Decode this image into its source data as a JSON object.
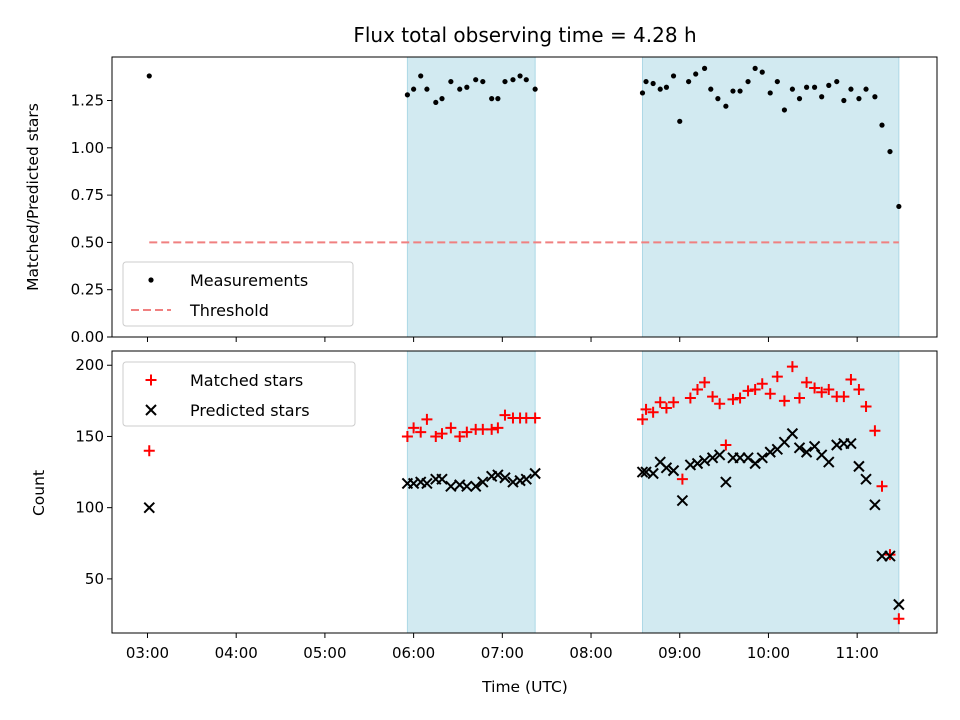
{
  "chart_data": [
    {
      "type": "scatter",
      "title": "Flux total observing time = 4.28 h",
      "xlabel": "",
      "ylabel": "Matched/Predicted stars",
      "xlim": [
        2.6,
        11.9
      ],
      "ylim": [
        0.0,
        1.48
      ],
      "yticks": [
        0.0,
        0.25,
        0.5,
        0.75,
        1.0,
        1.25
      ],
      "ytick_labels": [
        "0.00",
        "0.25",
        "0.50",
        "0.75",
        "1.00",
        "1.25"
      ],
      "grid": false,
      "legend": "lower-left",
      "shaded_intervals": [
        [
          5.93,
          7.37
        ],
        [
          8.58,
          11.47
        ]
      ],
      "shade_color": "#add8e6",
      "series": [
        {
          "name": "Measurements",
          "marker": "dot",
          "color": "#000000",
          "x": [
            3.02,
            5.93,
            6.0,
            6.08,
            6.15,
            6.25,
            6.32,
            6.42,
            6.52,
            6.6,
            6.7,
            6.78,
            6.88,
            6.95,
            7.03,
            7.12,
            7.2,
            7.27,
            7.37,
            8.58,
            8.62,
            8.7,
            8.78,
            8.85,
            8.93,
            9.0,
            9.1,
            9.18,
            9.28,
            9.35,
            9.43,
            9.52,
            9.6,
            9.68,
            9.77,
            9.85,
            9.93,
            10.02,
            10.1,
            10.18,
            10.27,
            10.35,
            10.43,
            10.52,
            10.6,
            10.68,
            10.77,
            10.85,
            10.93,
            11.02,
            11.1,
            11.2,
            11.28,
            11.37,
            11.47
          ],
          "y": [
            1.38,
            1.28,
            1.31,
            1.38,
            1.31,
            1.24,
            1.26,
            1.35,
            1.31,
            1.32,
            1.36,
            1.35,
            1.26,
            1.26,
            1.35,
            1.36,
            1.38,
            1.36,
            1.31,
            1.29,
            1.35,
            1.34,
            1.31,
            1.32,
            1.38,
            1.14,
            1.35,
            1.39,
            1.42,
            1.31,
            1.26,
            1.22,
            1.3,
            1.3,
            1.35,
            1.42,
            1.4,
            1.29,
            1.35,
            1.2,
            1.31,
            1.26,
            1.32,
            1.32,
            1.27,
            1.33,
            1.35,
            1.25,
            1.31,
            1.26,
            1.31,
            1.27,
            1.12,
            0.98,
            0.69
          ]
        },
        {
          "name": "Threshold",
          "type": "line",
          "style": "dashed",
          "color": "#f08080",
          "x": [
            3.02,
            11.47
          ],
          "y": [
            0.5,
            0.5
          ]
        }
      ]
    },
    {
      "type": "scatter",
      "title": "",
      "xlabel": "Time (UTC)",
      "ylabel": "Count",
      "xlim": [
        2.6,
        11.9
      ],
      "ylim": [
        12,
        210
      ],
      "yticks": [
        50,
        100,
        150,
        200
      ],
      "ytick_labels": [
        "50",
        "100",
        "150",
        "200"
      ],
      "xticks": [
        3,
        4,
        5,
        6,
        7,
        8,
        9,
        10,
        11
      ],
      "xtick_labels": [
        "03:00",
        "04:00",
        "05:00",
        "06:00",
        "07:00",
        "08:00",
        "09:00",
        "10:00",
        "11:00"
      ],
      "grid": false,
      "legend": "top-left",
      "shaded_intervals": [
        [
          5.93,
          7.37
        ],
        [
          8.58,
          11.47
        ]
      ],
      "shade_color": "#add8e6",
      "series": [
        {
          "name": "Matched stars",
          "marker": "plus",
          "color": "#ff0000",
          "x": [
            3.02,
            5.93,
            6.0,
            6.08,
            6.15,
            6.25,
            6.32,
            6.42,
            6.52,
            6.6,
            6.7,
            6.78,
            6.88,
            6.95,
            7.03,
            7.12,
            7.2,
            7.27,
            7.37,
            8.58,
            8.62,
            8.7,
            8.78,
            8.85,
            8.93,
            9.03,
            9.12,
            9.2,
            9.28,
            9.37,
            9.45,
            9.52,
            9.6,
            9.68,
            9.77,
            9.85,
            9.93,
            10.02,
            10.1,
            10.18,
            10.27,
            10.35,
            10.43,
            10.52,
            10.6,
            10.68,
            10.77,
            10.85,
            10.93,
            11.02,
            11.1,
            11.2,
            11.28,
            11.37,
            11.47
          ],
          "y": [
            140,
            150,
            156,
            153,
            162,
            150,
            152,
            156,
            150,
            153,
            155,
            155,
            155,
            156,
            165,
            163,
            163,
            163,
            163,
            162,
            169,
            167,
            174,
            170,
            174,
            120,
            177,
            183,
            188,
            178,
            173,
            144,
            176,
            177,
            182,
            183,
            187,
            180,
            192,
            175,
            199,
            177,
            188,
            184,
            181,
            183,
            178,
            178,
            190,
            183,
            171,
            154,
            115,
            67,
            22
          ]
        },
        {
          "name": "Predicted stars",
          "marker": "x",
          "color": "#000000",
          "x": [
            3.02,
            5.93,
            6.0,
            6.08,
            6.15,
            6.25,
            6.32,
            6.42,
            6.52,
            6.6,
            6.7,
            6.78,
            6.88,
            6.95,
            7.03,
            7.12,
            7.2,
            7.27,
            7.37,
            8.58,
            8.62,
            8.7,
            8.78,
            8.85,
            8.93,
            9.03,
            9.12,
            9.2,
            9.28,
            9.37,
            9.45,
            9.52,
            9.6,
            9.68,
            9.77,
            9.85,
            9.93,
            10.02,
            10.1,
            10.18,
            10.27,
            10.35,
            10.43,
            10.52,
            10.6,
            10.68,
            10.77,
            10.85,
            10.93,
            11.02,
            11.1,
            11.2,
            11.28,
            11.37,
            11.47
          ],
          "y": [
            100,
            117,
            117,
            118,
            117,
            120,
            120,
            115,
            116,
            115,
            115,
            118,
            122,
            123,
            121,
            118,
            119,
            120,
            124,
            125,
            125,
            124,
            132,
            128,
            126,
            105,
            130,
            131,
            133,
            135,
            137,
            118,
            135,
            135,
            135,
            131,
            135,
            139,
            141,
            146,
            152,
            142,
            139,
            143,
            137,
            132,
            144,
            145,
            145,
            129,
            120,
            102,
            66,
            66,
            32
          ]
        }
      ]
    }
  ]
}
